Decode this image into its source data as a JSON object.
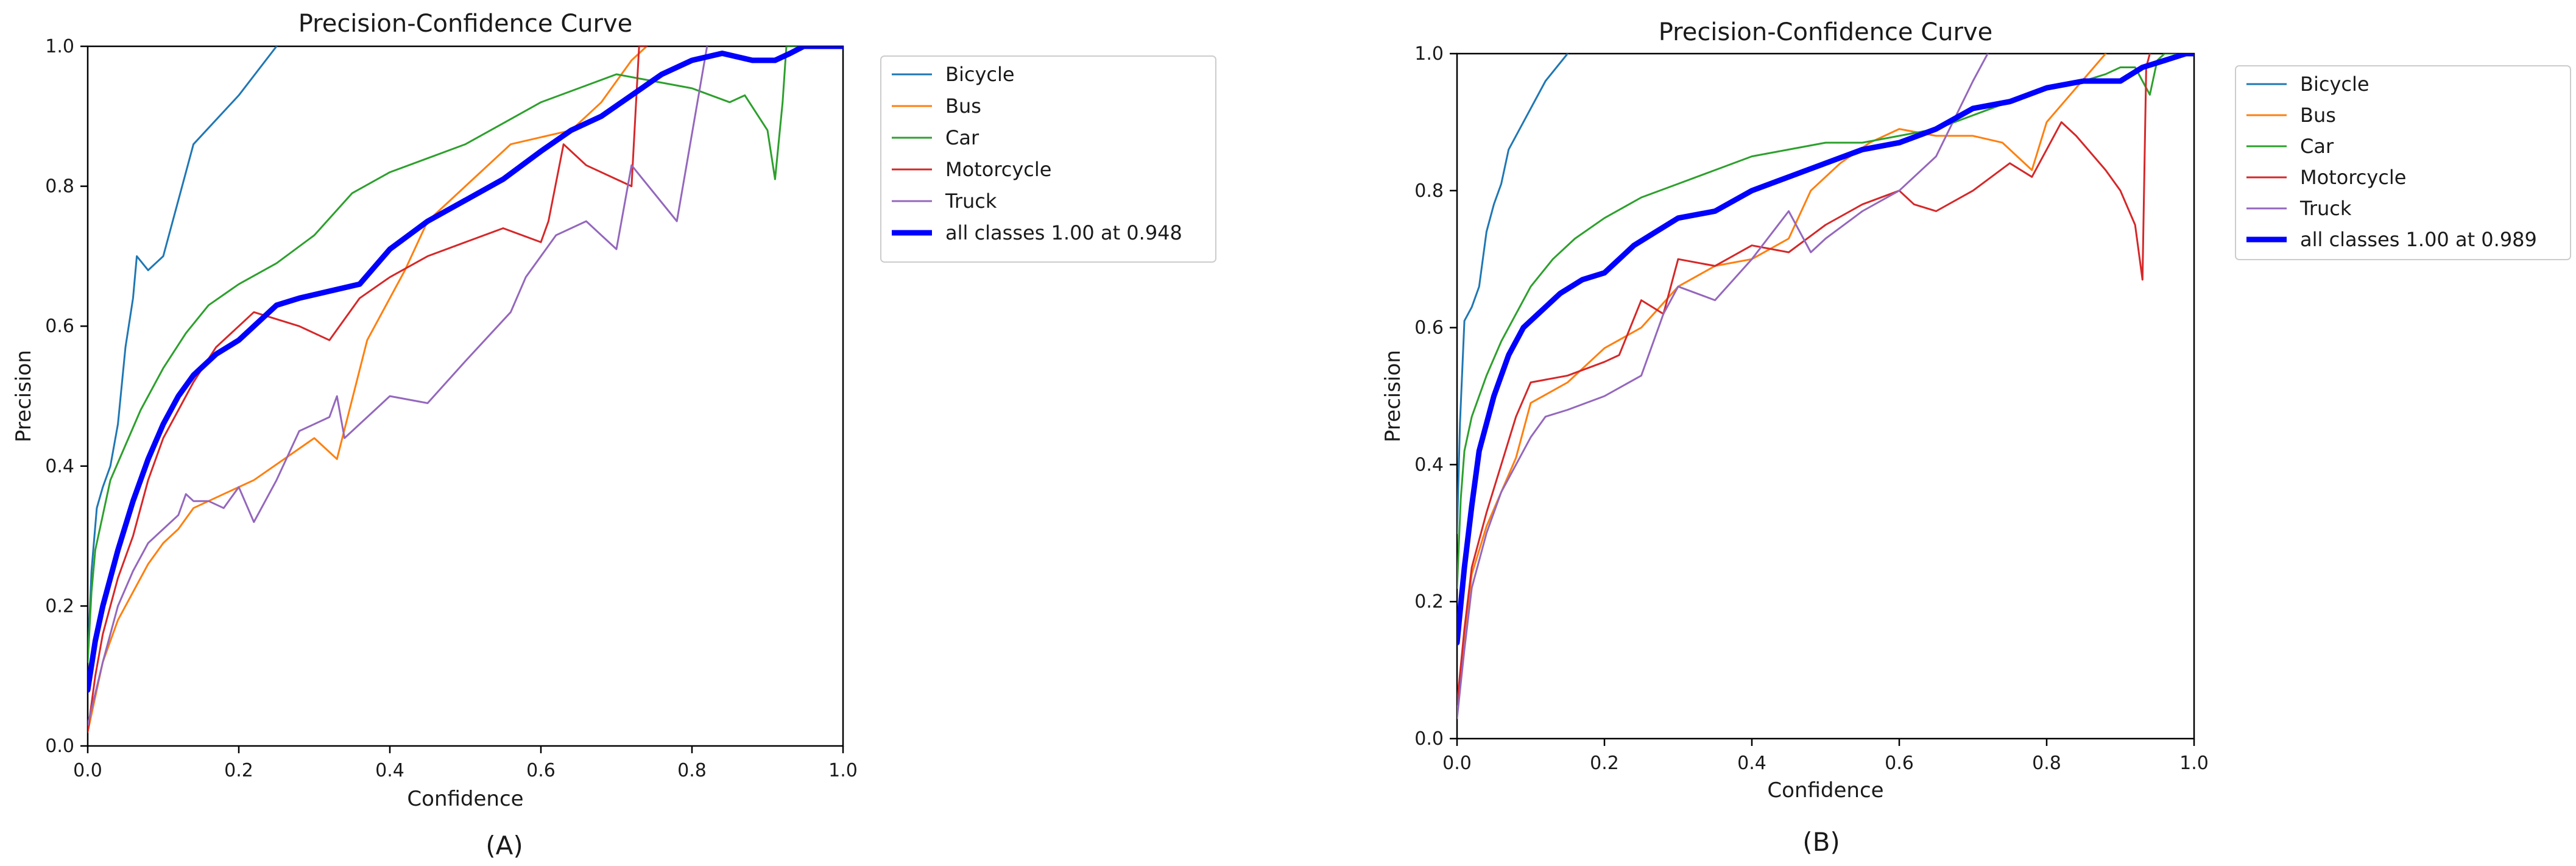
{
  "chart_data": [
    {
      "type": "line",
      "panel_label": "(A)",
      "title": "Precision-Confidence Curve",
      "xlabel": "Confidence",
      "ylabel": "Precision",
      "xlim": [
        0,
        1
      ],
      "ylim": [
        0,
        1
      ],
      "xticks": [
        "0.0",
        "0.2",
        "0.4",
        "0.6",
        "0.8",
        "1.0"
      ],
      "yticks": [
        "0.0",
        "0.2",
        "0.4",
        "0.6",
        "0.8",
        "1.0"
      ],
      "grid": false,
      "legend_position": "outside-right",
      "series": [
        {
          "name": "Bicycle",
          "color": "#1f77b4",
          "width": 3,
          "x": [
            0,
            0.005,
            0.012,
            0.02,
            0.03,
            0.04,
            0.05,
            0.06,
            0.065,
            0.08,
            0.1,
            0.14,
            0.2,
            0.25
          ],
          "y": [
            0.12,
            0.25,
            0.34,
            0.37,
            0.4,
            0.46,
            0.57,
            0.64,
            0.7,
            0.68,
            0.7,
            0.86,
            0.93,
            1.0
          ]
        },
        {
          "name": "Bus",
          "color": "#ff7f0e",
          "width": 3,
          "x": [
            0,
            0.02,
            0.04,
            0.06,
            0.08,
            0.1,
            0.12,
            0.14,
            0.18,
            0.22,
            0.3,
            0.33,
            0.37,
            0.4,
            0.42,
            0.45,
            0.48,
            0.52,
            0.56,
            0.6,
            0.64,
            0.68,
            0.72,
            0.74
          ],
          "y": [
            0.02,
            0.12,
            0.18,
            0.22,
            0.26,
            0.29,
            0.31,
            0.34,
            0.36,
            0.38,
            0.44,
            0.41,
            0.58,
            0.64,
            0.68,
            0.75,
            0.78,
            0.82,
            0.86,
            0.87,
            0.88,
            0.92,
            0.98,
            1.0
          ]
        },
        {
          "name": "Car",
          "color": "#2ca02c",
          "width": 3,
          "x": [
            0,
            0.005,
            0.01,
            0.02,
            0.03,
            0.05,
            0.07,
            0.1,
            0.13,
            0.16,
            0.2,
            0.25,
            0.3,
            0.35,
            0.4,
            0.45,
            0.5,
            0.55,
            0.6,
            0.65,
            0.7,
            0.75,
            0.8,
            0.85,
            0.87,
            0.9,
            0.91,
            0.92,
            0.925,
            0.94,
            1.0
          ],
          "y": [
            0.12,
            0.22,
            0.28,
            0.33,
            0.38,
            0.43,
            0.48,
            0.54,
            0.59,
            0.63,
            0.66,
            0.69,
            0.73,
            0.79,
            0.82,
            0.84,
            0.86,
            0.89,
            0.92,
            0.94,
            0.96,
            0.95,
            0.94,
            0.92,
            0.93,
            0.88,
            0.81,
            0.92,
            1.0,
            1.0,
            1.0
          ]
        },
        {
          "name": "Motorcycle",
          "color": "#d62728",
          "width": 3,
          "x": [
            0,
            0.01,
            0.02,
            0.04,
            0.06,
            0.08,
            0.1,
            0.12,
            0.14,
            0.17,
            0.2,
            0.22,
            0.25,
            0.28,
            0.32,
            0.36,
            0.4,
            0.45,
            0.5,
            0.55,
            0.6,
            0.61,
            0.63,
            0.66,
            0.7,
            0.72,
            0.73,
            0.74
          ],
          "y": [
            0.02,
            0.1,
            0.16,
            0.24,
            0.3,
            0.38,
            0.44,
            0.48,
            0.52,
            0.57,
            0.6,
            0.62,
            0.61,
            0.6,
            0.58,
            0.64,
            0.67,
            0.7,
            0.72,
            0.74,
            0.72,
            0.75,
            0.86,
            0.83,
            0.81,
            0.8,
            1.0,
            1.0
          ]
        },
        {
          "name": "Truck",
          "color": "#9467bd",
          "width": 3,
          "x": [
            0,
            0.02,
            0.04,
            0.06,
            0.08,
            0.1,
            0.12,
            0.13,
            0.14,
            0.16,
            0.18,
            0.2,
            0.22,
            0.25,
            0.28,
            0.32,
            0.33,
            0.34,
            0.38,
            0.4,
            0.45,
            0.5,
            0.56,
            0.58,
            0.62,
            0.66,
            0.68,
            0.7,
            0.72,
            0.78,
            0.82
          ],
          "y": [
            0.03,
            0.12,
            0.2,
            0.25,
            0.29,
            0.31,
            0.33,
            0.36,
            0.35,
            0.35,
            0.34,
            0.37,
            0.32,
            0.38,
            0.45,
            0.47,
            0.5,
            0.44,
            0.48,
            0.5,
            0.49,
            0.55,
            0.62,
            0.67,
            0.73,
            0.75,
            0.73,
            0.71,
            0.83,
            0.75,
            1.0
          ]
        },
        {
          "name": "all classes 1.00 at 0.948",
          "color": "#0000ff",
          "width": 9,
          "x": [
            0,
            0.01,
            0.02,
            0.04,
            0.06,
            0.08,
            0.1,
            0.12,
            0.14,
            0.17,
            0.2,
            0.25,
            0.28,
            0.32,
            0.36,
            0.4,
            0.45,
            0.5,
            0.55,
            0.6,
            0.64,
            0.68,
            0.72,
            0.76,
            0.8,
            0.84,
            0.88,
            0.91,
            0.93,
            0.948,
            1.0
          ],
          "y": [
            0.08,
            0.15,
            0.2,
            0.28,
            0.35,
            0.41,
            0.46,
            0.5,
            0.53,
            0.56,
            0.58,
            0.63,
            0.64,
            0.65,
            0.66,
            0.71,
            0.75,
            0.78,
            0.81,
            0.85,
            0.88,
            0.9,
            0.93,
            0.96,
            0.98,
            0.99,
            0.98,
            0.98,
            0.99,
            1.0,
            1.0
          ]
        }
      ]
    },
    {
      "type": "line",
      "panel_label": "(B)",
      "title": "Precision-Confidence Curve",
      "xlabel": "Confidence",
      "ylabel": "Precision",
      "xlim": [
        0,
        1
      ],
      "ylim": [
        0,
        1
      ],
      "xticks": [
        "0.0",
        "0.2",
        "0.4",
        "0.6",
        "0.8",
        "1.0"
      ],
      "yticks": [
        "0.0",
        "0.2",
        "0.4",
        "0.6",
        "0.8",
        "1.0"
      ],
      "grid": false,
      "legend_position": "outside-right",
      "series": [
        {
          "name": "Bicycle",
          "color": "#1f77b4",
          "width": 3,
          "x": [
            0,
            0.004,
            0.01,
            0.02,
            0.03,
            0.04,
            0.05,
            0.06,
            0.07,
            0.09,
            0.12,
            0.15
          ],
          "y": [
            0.3,
            0.46,
            0.61,
            0.63,
            0.66,
            0.74,
            0.78,
            0.81,
            0.86,
            0.9,
            0.96,
            1.0
          ]
        },
        {
          "name": "Bus",
          "color": "#ff7f0e",
          "width": 3,
          "x": [
            0,
            0.01,
            0.02,
            0.04,
            0.06,
            0.08,
            0.1,
            0.15,
            0.2,
            0.25,
            0.3,
            0.35,
            0.4,
            0.45,
            0.48,
            0.52,
            0.56,
            0.6,
            0.65,
            0.7,
            0.74,
            0.78,
            0.8,
            0.84,
            0.88
          ],
          "y": [
            0.04,
            0.15,
            0.24,
            0.31,
            0.36,
            0.41,
            0.49,
            0.52,
            0.57,
            0.6,
            0.66,
            0.69,
            0.7,
            0.73,
            0.8,
            0.84,
            0.87,
            0.89,
            0.88,
            0.88,
            0.87,
            0.83,
            0.9,
            0.95,
            1.0
          ]
        },
        {
          "name": "Car",
          "color": "#2ca02c",
          "width": 3,
          "x": [
            0,
            0.005,
            0.01,
            0.02,
            0.04,
            0.06,
            0.08,
            0.1,
            0.13,
            0.16,
            0.2,
            0.25,
            0.3,
            0.35,
            0.4,
            0.45,
            0.5,
            0.55,
            0.6,
            0.65,
            0.7,
            0.75,
            0.8,
            0.85,
            0.88,
            0.9,
            0.92,
            0.94,
            0.95,
            0.96,
            1.0
          ],
          "y": [
            0.22,
            0.35,
            0.42,
            0.47,
            0.53,
            0.58,
            0.62,
            0.66,
            0.7,
            0.73,
            0.76,
            0.79,
            0.81,
            0.83,
            0.85,
            0.86,
            0.87,
            0.87,
            0.88,
            0.89,
            0.91,
            0.93,
            0.95,
            0.96,
            0.97,
            0.98,
            0.98,
            0.94,
            0.99,
            1.0,
            1.0
          ]
        },
        {
          "name": "Motorcycle",
          "color": "#d62728",
          "width": 3,
          "x": [
            0,
            0.01,
            0.02,
            0.04,
            0.06,
            0.08,
            0.1,
            0.15,
            0.2,
            0.22,
            0.25,
            0.28,
            0.3,
            0.35,
            0.4,
            0.45,
            0.5,
            0.55,
            0.6,
            0.62,
            0.65,
            0.7,
            0.75,
            0.78,
            0.8,
            0.82,
            0.84,
            0.88,
            0.9,
            0.92,
            0.93,
            0.935,
            0.94
          ],
          "y": [
            0.05,
            0.16,
            0.25,
            0.33,
            0.4,
            0.47,
            0.52,
            0.53,
            0.55,
            0.56,
            0.64,
            0.62,
            0.7,
            0.69,
            0.72,
            0.71,
            0.75,
            0.78,
            0.8,
            0.78,
            0.77,
            0.8,
            0.84,
            0.82,
            0.86,
            0.9,
            0.88,
            0.83,
            0.8,
            0.75,
            0.67,
            0.98,
            1.0
          ]
        },
        {
          "name": "Truck",
          "color": "#9467bd",
          "width": 3,
          "x": [
            0,
            0.01,
            0.02,
            0.04,
            0.06,
            0.08,
            0.1,
            0.12,
            0.15,
            0.2,
            0.25,
            0.28,
            0.3,
            0.35,
            0.4,
            0.45,
            0.48,
            0.5,
            0.55,
            0.6,
            0.65,
            0.7,
            0.72
          ],
          "y": [
            0.03,
            0.13,
            0.22,
            0.3,
            0.36,
            0.4,
            0.44,
            0.47,
            0.48,
            0.5,
            0.53,
            0.62,
            0.66,
            0.64,
            0.7,
            0.77,
            0.71,
            0.73,
            0.77,
            0.8,
            0.85,
            0.96,
            1.0
          ]
        },
        {
          "name": "all classes 1.00 at 0.989",
          "color": "#0000ff",
          "width": 9,
          "x": [
            0,
            0.01,
            0.02,
            0.03,
            0.05,
            0.07,
            0.09,
            0.11,
            0.14,
            0.17,
            0.2,
            0.24,
            0.27,
            0.3,
            0.35,
            0.4,
            0.45,
            0.5,
            0.55,
            0.6,
            0.65,
            0.7,
            0.75,
            0.8,
            0.85,
            0.88,
            0.9,
            0.93,
            0.96,
            0.989,
            1.0
          ],
          "y": [
            0.14,
            0.25,
            0.34,
            0.42,
            0.5,
            0.56,
            0.6,
            0.62,
            0.65,
            0.67,
            0.68,
            0.72,
            0.74,
            0.76,
            0.77,
            0.8,
            0.82,
            0.84,
            0.86,
            0.87,
            0.89,
            0.92,
            0.93,
            0.95,
            0.96,
            0.96,
            0.96,
            0.98,
            0.99,
            1.0,
            1.0
          ]
        }
      ]
    }
  ]
}
